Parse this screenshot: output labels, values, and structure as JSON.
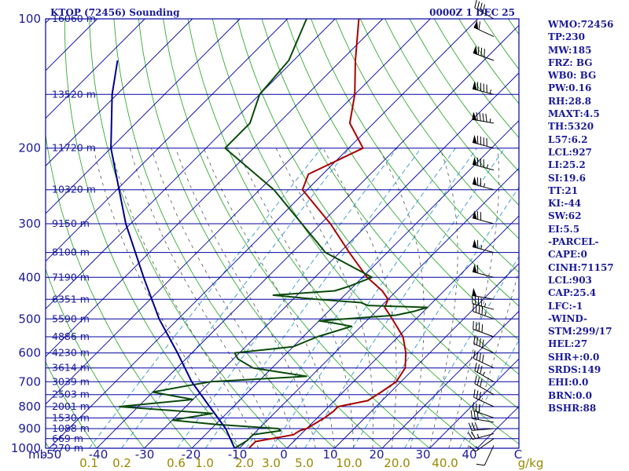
{
  "header": {
    "station": "KTOP (72456) Sounding",
    "time": "0000Z  1 DEC 25"
  },
  "chart_data": {
    "type": "skew-t",
    "pressure_unit": "mb",
    "mixing_ratio_unit": "g/kg",
    "pressure_levels": [
      100,
      200,
      300,
      400,
      500,
      600,
      700,
      800,
      900,
      1000
    ],
    "temperature_ticks": [
      -50,
      -40,
      -30,
      -20,
      -10,
      0,
      10,
      20,
      30,
      40,
      "C"
    ],
    "mixing_ratio_ticks": [
      "0.1",
      "0.2",
      "0.6",
      "1.0",
      "2.0",
      "3.0",
      "5.0",
      "10.0",
      "20.0",
      "40.0"
    ],
    "altitude_labels": [
      {
        "p": 100,
        "text": "16060 m"
      },
      {
        "p": 150,
        "text": "13520 m"
      },
      {
        "p": 200,
        "text": "11720 m"
      },
      {
        "p": 250,
        "text": "10320 m"
      },
      {
        "p": 300,
        "text": "9150 m"
      },
      {
        "p": 350,
        "text": "8100 m"
      },
      {
        "p": 400,
        "text": "7190 m"
      },
      {
        "p": 450,
        "text": "6351 m"
      },
      {
        "p": 500,
        "text": "5590 m"
      },
      {
        "p": 550,
        "text": "4886 m"
      },
      {
        "p": 600,
        "text": "4230 m"
      },
      {
        "p": 650,
        "text": "3614 m"
      },
      {
        "p": 700,
        "text": "3039 m"
      },
      {
        "p": 750,
        "text": "2503 m"
      },
      {
        "p": 800,
        "text": "2001 m"
      },
      {
        "p": 850,
        "text": "1530 m"
      },
      {
        "p": 900,
        "text": "1088 m"
      },
      {
        "p": 950,
        "text": "669 m"
      },
      {
        "p": 1000,
        "text": "270 m"
      }
    ],
    "series": [
      {
        "color": "#aa0000",
        "points": [
          [
            1000,
            -8
          ],
          [
            965,
            -8
          ],
          [
            930,
            -1.5
          ],
          [
            910,
            -1
          ],
          [
            900,
            0
          ],
          [
            850,
            1.5
          ],
          [
            820,
            2
          ],
          [
            800,
            2
          ],
          [
            775,
            7
          ],
          [
            740,
            8
          ],
          [
            700,
            9
          ],
          [
            650,
            8
          ],
          [
            600,
            5
          ],
          [
            550,
            1
          ],
          [
            500,
            -5
          ],
          [
            470,
            -9
          ],
          [
            450,
            -10
          ],
          [
            430,
            -13
          ],
          [
            400,
            -19
          ],
          [
            350,
            -28
          ],
          [
            300,
            -38
          ],
          [
            250,
            -51
          ],
          [
            230,
            -53
          ],
          [
            200,
            -47
          ],
          [
            175,
            -55
          ],
          [
            150,
            -60
          ],
          [
            125,
            -67
          ],
          [
            100,
            -75
          ]
        ]
      },
      {
        "color": "#0a4a0a",
        "points": [
          [
            1000,
            -11
          ],
          [
            960,
            -10
          ],
          [
            930,
            -10
          ],
          [
            910,
            -5
          ],
          [
            900,
            -6
          ],
          [
            880,
            -20
          ],
          [
            860,
            -30
          ],
          [
            830,
            -23
          ],
          [
            800,
            -44
          ],
          [
            770,
            -30
          ],
          [
            740,
            -40
          ],
          [
            715,
            -34
          ],
          [
            700,
            -30
          ],
          [
            680,
            -11
          ],
          [
            650,
            -24
          ],
          [
            620,
            -29
          ],
          [
            600,
            -31
          ],
          [
            580,
            -20
          ],
          [
            550,
            -17
          ],
          [
            520,
            -12
          ],
          [
            510,
            -17
          ],
          [
            505,
            -20
          ],
          [
            490,
            -5
          ],
          [
            480,
            -2
          ],
          [
            470,
            0
          ],
          [
            465,
            -13
          ],
          [
            458,
            -15
          ],
          [
            450,
            -25
          ],
          [
            440,
            -35
          ],
          [
            430,
            -23
          ],
          [
            420,
            -21
          ],
          [
            400,
            -18
          ],
          [
            350,
            -33
          ],
          [
            300,
            -44
          ],
          [
            250,
            -57
          ],
          [
            200,
            -76
          ],
          [
            175,
            -76
          ],
          [
            150,
            -80
          ],
          [
            125,
            -81
          ],
          [
            100,
            -86
          ]
        ]
      },
      {
        "color": "#00008b",
        "points": [
          [
            1000,
            -11
          ],
          [
            900,
            -17
          ],
          [
            800,
            -25
          ],
          [
            700,
            -34
          ],
          [
            600,
            -43
          ],
          [
            500,
            -54
          ],
          [
            400,
            -66
          ],
          [
            300,
            -81
          ],
          [
            200,
            -100
          ],
          [
            150,
            -111
          ],
          [
            125,
            -117
          ]
        ]
      }
    ],
    "wind_barbs": [
      {
        "p": 985,
        "dir": 205,
        "spd": 10
      },
      {
        "p": 950,
        "dir": 235,
        "spd": 15
      },
      {
        "p": 925,
        "dir": 255,
        "spd": 25
      },
      {
        "p": 900,
        "dir": 265,
        "spd": 30
      },
      {
        "p": 870,
        "dir": 280,
        "spd": 30
      },
      {
        "p": 850,
        "dir": 290,
        "spd": 30
      },
      {
        "p": 800,
        "dir": 295,
        "spd": 30
      },
      {
        "p": 750,
        "dir": 300,
        "spd": 30
      },
      {
        "p": 700,
        "dir": 300,
        "spd": 35
      },
      {
        "p": 650,
        "dir": 295,
        "spd": 40
      },
      {
        "p": 600,
        "dir": 295,
        "spd": 40
      },
      {
        "p": 550,
        "dir": 290,
        "spd": 40
      },
      {
        "p": 500,
        "dir": 290,
        "spd": 45
      },
      {
        "p": 475,
        "dir": 285,
        "spd": 45
      },
      {
        "p": 450,
        "dir": 280,
        "spd": 50
      },
      {
        "p": 400,
        "dir": 285,
        "spd": 60
      },
      {
        "p": 350,
        "dir": 285,
        "spd": 65
      },
      {
        "p": 300,
        "dir": 285,
        "spd": 70
      },
      {
        "p": 250,
        "dir": 285,
        "spd": 75
      },
      {
        "p": 225,
        "dir": 285,
        "spd": 85
      },
      {
        "p": 200,
        "dir": 285,
        "spd": 90
      },
      {
        "p": 175,
        "dir": 280,
        "spd": 95
      },
      {
        "p": 150,
        "dir": 285,
        "spd": 95
      },
      {
        "p": 125,
        "dir": 290,
        "spd": 80
      },
      {
        "p": 110,
        "dir": 295,
        "spd": 60
      },
      {
        "p": 100,
        "dir": 300,
        "spd": 45
      }
    ],
    "colors": {
      "isobar": "#0000a0",
      "isotherm": "#0000a0",
      "dry_adiabat": "#33aa33",
      "moist_adiabat": "#555555",
      "mixing_ratio": "#3399cc"
    }
  },
  "indices": [
    "WMO:72456",
    "TP:230",
    "MW:185",
    "FRZ: BG",
    "WB0: BG",
    "PW:0.16",
    "RH:28.8",
    "MAXT:4.5",
    "TH:5320",
    "L57:6.2",
    "LCL:927",
    "LI:25.2",
    "SI:19.6",
    "TT:21",
    "KI:-44",
    "SW:62",
    "EI:5.5",
    "-PARCEL-",
    "CAPE:0",
    "CINH:71157",
    "LCL:903",
    "CAP:25.4",
    "LFC:-1",
    "-WIND-",
    "STM:299/17",
    "HEL:27",
    "SHR+:0.0",
    "SRDS:149",
    "EHI:0.0",
    "BRN:0.0",
    "BSHR:88"
  ]
}
